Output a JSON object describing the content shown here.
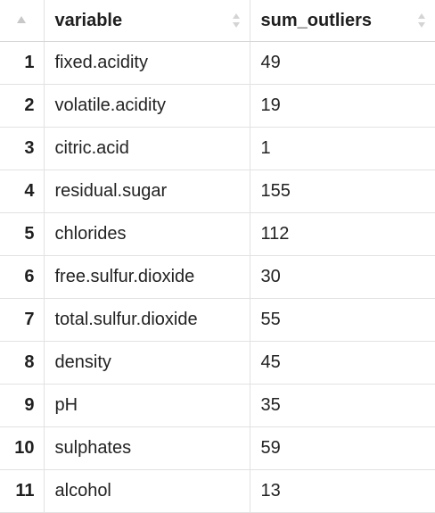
{
  "table": {
    "columns": [
      {
        "key": "index",
        "label": ""
      },
      {
        "key": "variable",
        "label": "variable"
      },
      {
        "key": "sum_outliers",
        "label": "sum_outliers"
      }
    ],
    "rows": [
      {
        "index": "1",
        "variable": "fixed.acidity",
        "sum_outliers": "49"
      },
      {
        "index": "2",
        "variable": "volatile.acidity",
        "sum_outliers": "19"
      },
      {
        "index": "3",
        "variable": "citric.acid",
        "sum_outliers": "1"
      },
      {
        "index": "4",
        "variable": "residual.sugar",
        "sum_outliers": "155"
      },
      {
        "index": "5",
        "variable": "chlorides",
        "sum_outliers": "112"
      },
      {
        "index": "6",
        "variable": "free.sulfur.dioxide",
        "sum_outliers": "30"
      },
      {
        "index": "7",
        "variable": "total.sulfur.dioxide",
        "sum_outliers": "55"
      },
      {
        "index": "8",
        "variable": "density",
        "sum_outliers": "45"
      },
      {
        "index": "9",
        "variable": "pH",
        "sum_outliers": "35"
      },
      {
        "index": "10",
        "variable": "sulphates",
        "sum_outliers": "59"
      },
      {
        "index": "11",
        "variable": "alcohol",
        "sum_outliers": "13"
      }
    ]
  },
  "icons": {
    "index_sort": "sort-ascending-icon",
    "column_sort": "sort-icon"
  },
  "colors": {
    "text": "#222222",
    "grid": "#e2e2e2",
    "sort_icon": "#d0d0d0",
    "background": "#ffffff"
  }
}
